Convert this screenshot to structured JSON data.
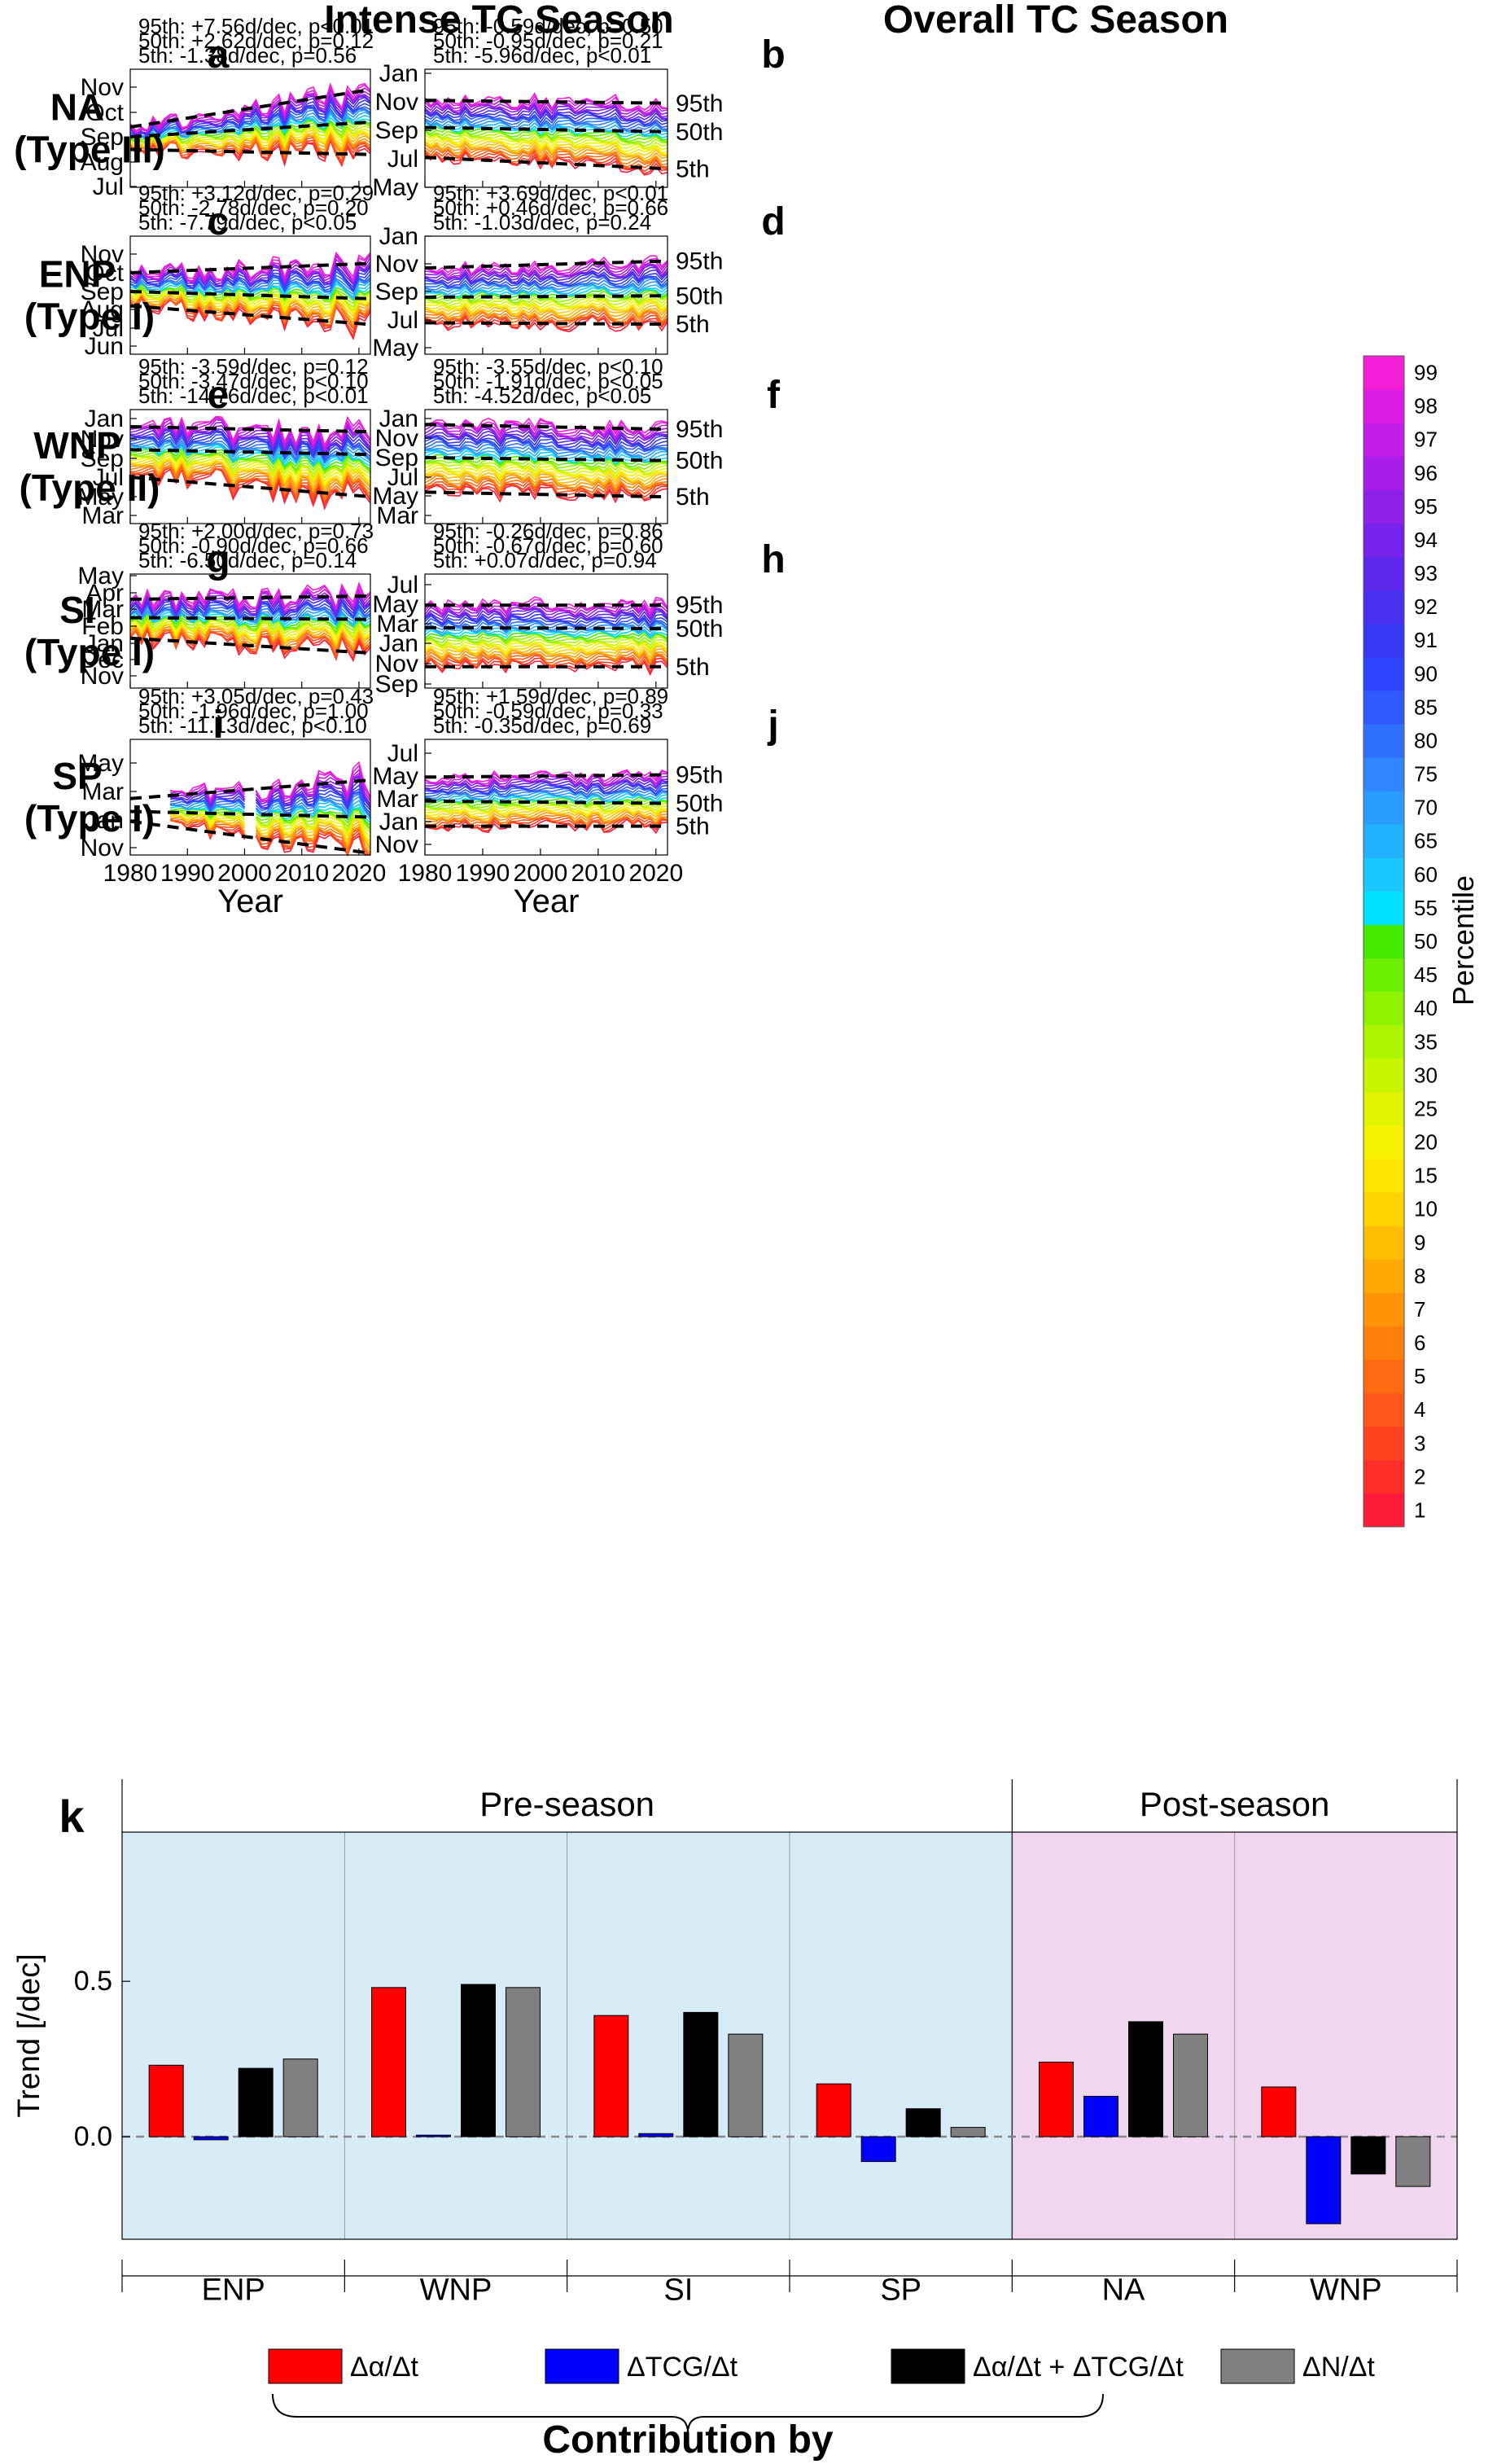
{
  "top_headers": [
    "Intense TC Season",
    "Overall TC Season"
  ],
  "colorbar": {
    "label": "Percentile",
    "ticks": [
      "1",
      "2",
      "3",
      "4",
      "5",
      "6",
      "7",
      "8",
      "9",
      "10",
      "15",
      "20",
      "25",
      "30",
      "35",
      "40",
      "45",
      "50",
      "55",
      "60",
      "65",
      "70",
      "75",
      "80",
      "85",
      "90",
      "91",
      "92",
      "93",
      "94",
      "95",
      "96",
      "97",
      "98",
      "99"
    ],
    "colors": [
      "#ff1b3a",
      "#ff2f28",
      "#ff4220",
      "#ff561a",
      "#ff6a12",
      "#ff7f0c",
      "#ff9408",
      "#ffa806",
      "#ffbd04",
      "#ffd202",
      "#ffe600",
      "#f6f200",
      "#e2f500",
      "#c9f500",
      "#aef400",
      "#8ef200",
      "#6cef00",
      "#45ea00",
      "#00e0ff",
      "#18c8ff",
      "#22b2ff",
      "#2a9cff",
      "#2f86ff",
      "#3070ff",
      "#305aff",
      "#2f44ff",
      "#3838f6",
      "#4a30f0",
      "#5e28ec",
      "#7722ea",
      "#8f20e8",
      "#a81ee8",
      "#c21de8",
      "#dd1de4",
      "#f41ed8"
    ]
  },
  "panels_meta": [
    {
      "label": "a",
      "region": "NA",
      "type": "(Type III)",
      "months": [
        "Jul",
        "Aug",
        "Sep",
        "Oct",
        "Nov"
      ],
      "annotation": [
        "95th: +7.56d/dec, p<0.01",
        "50th: +2.62d/dec, p=0.12",
        "5th:   -1.38d/dec, p=0.56"
      ]
    },
    {
      "label": "b",
      "months": [
        "May",
        "Jul",
        "Sep",
        "Nov",
        "Jan"
      ],
      "pct_labels": [
        "95th",
        "50th",
        "5th"
      ],
      "annotation": [
        "95th: -0.59d/dec, p=0.50",
        "50th: -0.95d/dec, p=0.21",
        "5th:   -5.96d/dec, p<0.01"
      ]
    },
    {
      "label": "c",
      "region": "ENP",
      "type": "(Type I)",
      "months": [
        "Jun",
        "Jul",
        "Aug",
        "Sep",
        "Oct",
        "Nov"
      ],
      "annotation": [
        "95th: +3.12d/dec, p=0.29",
        "50th: -2.78d/dec, p=0.20",
        "5th:   -7.79d/dec, p<0.05"
      ]
    },
    {
      "label": "d",
      "months": [
        "May",
        "Jul",
        "Sep",
        "Nov",
        "Jan"
      ],
      "pct_labels": [
        "95th",
        "50th",
        "5th"
      ],
      "annotation": [
        "95th: +3.69d/dec, p<0.01",
        "50th: +0.46d/dec, p=0.66",
        "5th:   -1.03d/dec, p=0.24"
      ]
    },
    {
      "label": "e",
      "region": "WNP",
      "type": "(Type II)",
      "months": [
        "Mar",
        "May",
        "Jul",
        "Sep",
        "Nov",
        "Jan"
      ],
      "annotation": [
        "95th: -3.59d/dec, p=0.12",
        "50th: -3.47d/dec, p<0.10",
        "5th:   -14.76d/dec, p<0.01"
      ]
    },
    {
      "label": "f",
      "months": [
        "Mar",
        "May",
        "Jul",
        "Sep",
        "Nov",
        "Jan"
      ],
      "pct_labels": [
        "95th",
        "50th",
        "5th"
      ],
      "annotation": [
        "95th: -3.55d/dec, p<0.10",
        "50th: -1.91d/dec, p<0.05",
        "5th:   -4.52d/dec, p<0.05"
      ]
    },
    {
      "label": "g",
      "region": "SI",
      "type": "(Type I)",
      "months": [
        "Nov",
        "Dec",
        "Jan",
        "Feb",
        "Mar",
        "Apr",
        "May"
      ],
      "annotation": [
        "95th: +2.00d/dec, p=0.73",
        "50th: -0.90d/dec, p=0.66",
        "5th:   -6.50d/dec, p=0.14"
      ]
    },
    {
      "label": "h",
      "months": [
        "Sep",
        "Nov",
        "Jan",
        "Mar",
        "May",
        "Jul"
      ],
      "pct_labels": [
        "95th",
        "50th",
        "5th"
      ],
      "annotation": [
        "95th: -0.26d/dec, p=0.86",
        "50th: -0.67d/dec, p=0.60",
        "5th:   +0.07d/dec, p=0.94"
      ]
    },
    {
      "label": "i",
      "region": "SP",
      "type": "(Type I)",
      "months": [
        "Nov",
        "Jan",
        "Mar",
        "May"
      ],
      "annotation": [
        "95th: +3.05d/dec, p=0.43",
        "50th: -1.96d/dec, p=1.00",
        "5th:   -11.13d/dec, p<0.10"
      ]
    },
    {
      "label": "j",
      "months": [
        "Nov",
        "Jan",
        "Mar",
        "May",
        "Jul"
      ],
      "pct_labels": [
        "95th",
        "50th",
        "5th"
      ],
      "annotation": [
        "95th: +1.59d/dec, p=0.89",
        "50th: -0.59d/dec, p=0.33",
        "5th:   -0.35d/dec, p=0.69"
      ]
    }
  ],
  "year_axis": {
    "label": "Year",
    "ticks": [
      "1980",
      "1990",
      "2000",
      "2010",
      "2020"
    ]
  },
  "chart_data": [
    {
      "panel": "a",
      "type": "line",
      "x_range": [
        1980,
        2022
      ],
      "trend_d_per_dec": {
        "95th": 7.56,
        "50th": 2.62,
        "5th": -1.38
      },
      "p_values": {
        "95th": "p<0.01",
        "50th": "p=0.12",
        "5th": "p=0.56"
      },
      "trend_endpoints_month": {
        "95th": [
          9.4,
          10.9
        ],
        "50th": [
          9.0,
          9.6
        ],
        "5th": [
          8.5,
          8.3
        ]
      }
    },
    {
      "panel": "b",
      "type": "line",
      "x_range": [
        1980,
        2022
      ],
      "trend_d_per_dec": {
        "95th": -0.59,
        "50th": -0.95,
        "5th": -5.96
      },
      "p_values": {
        "95th": "p=0.50",
        "50th": "p=0.21",
        "5th": "p<0.01"
      },
      "trend_endpoints_month": {
        "95th": [
          11.1,
          10.9
        ],
        "50th": [
          9.2,
          8.9
        ],
        "5th": [
          7.1,
          6.3
        ]
      }
    },
    {
      "panel": "c",
      "type": "line",
      "x_range": [
        1980,
        2022
      ],
      "trend_d_per_dec": {
        "95th": 3.12,
        "50th": -2.78,
        "5th": -7.79
      },
      "p_values": {
        "95th": "p=0.29",
        "50th": "p=0.20",
        "5th": "p<0.05"
      },
      "trend_endpoints_month": {
        "95th": [
          10.0,
          10.5
        ],
        "50th": [
          9.0,
          8.6
        ],
        "5th": [
          8.2,
          7.2
        ]
      }
    },
    {
      "panel": "d",
      "type": "line",
      "x_range": [
        1980,
        2022
      ],
      "trend_d_per_dec": {
        "95th": 3.69,
        "50th": 0.46,
        "5th": -1.03
      },
      "p_values": {
        "95th": "p<0.01",
        "50th": "p=0.66",
        "5th": "p=0.24"
      },
      "trend_endpoints_month": {
        "95th": [
          10.7,
          11.2
        ],
        "50th": [
          8.6,
          8.7
        ],
        "5th": [
          6.8,
          6.7
        ]
      }
    },
    {
      "panel": "e",
      "type": "line",
      "x_range": [
        1980,
        2022
      ],
      "trend_d_per_dec": {
        "95th": -3.59,
        "50th": -3.47,
        "5th": -14.76
      },
      "p_values": {
        "95th": "p=0.12",
        "50th": "p<0.10",
        "5th": "p<0.01"
      },
      "trend_endpoints_month": {
        "95th": [
          12.2,
          11.7
        ],
        "50th": [
          9.9,
          9.4
        ],
        "5th": [
          7.0,
          5.0
        ]
      }
    },
    {
      "panel": "f",
      "type": "line",
      "x_range": [
        1980,
        2022
      ],
      "trend_d_per_dec": {
        "95th": -3.55,
        "50th": -1.91,
        "5th": -4.52
      },
      "p_values": {
        "95th": "p<0.10",
        "50th": "p<0.05",
        "5th": "p<0.05"
      },
      "trend_endpoints_month": {
        "95th": [
          12.4,
          11.9
        ],
        "50th": [
          9.0,
          8.7
        ],
        "5th": [
          5.4,
          4.9
        ]
      }
    },
    {
      "panel": "g",
      "type": "line",
      "x_range": [
        1980,
        2022
      ],
      "trend_d_per_dec": {
        "95th": 2.0,
        "50th": -0.9,
        "5th": -6.5
      },
      "p_values": {
        "95th": "p=0.73",
        "50th": "p=0.66",
        "5th": "p=0.14"
      },
      "trend_endpoints_month": {
        "95th": [
          3.6,
          3.8
        ],
        "50th": [
          2.5,
          2.4
        ],
        "5th": [
          1.3,
          0.4
        ]
      }
    },
    {
      "panel": "h",
      "type": "line",
      "x_range": [
        1980,
        2022
      ],
      "trend_d_per_dec": {
        "95th": -0.26,
        "50th": -0.67,
        "5th": 0.07
      },
      "p_values": {
        "95th": "p=0.86",
        "50th": "p=0.60",
        "5th": "p=0.94"
      },
      "trend_endpoints_month": {
        "95th": [
          4.9,
          4.9
        ],
        "50th": [
          2.6,
          2.5
        ],
        "5th": [
          -1.3,
          -1.3
        ]
      }
    },
    {
      "panel": "i",
      "type": "line",
      "x_range": [
        1980,
        2022
      ],
      "trend_d_per_dec": {
        "95th": 3.05,
        "50th": -1.96,
        "5th": -11.13
      },
      "p_values": {
        "95th": "p=0.43",
        "50th": "p=1.00",
        "5th": "p<0.10"
      },
      "trend_endpoints_month": {
        "95th": [
          2.5,
          3.8
        ],
        "50th": [
          1.6,
          1.2
        ],
        "5th": [
          0.9,
          -1.4
        ]
      }
    },
    {
      "panel": "j",
      "type": "line",
      "x_range": [
        1980,
        2022
      ],
      "trend_d_per_dec": {
        "95th": 1.59,
        "50th": -0.59,
        "5th": -0.35
      },
      "p_values": {
        "95th": "p=0.89",
        "50th": "p=0.33",
        "5th": "p=0.69"
      },
      "trend_endpoints_month": {
        "95th": [
          4.9,
          5.1
        ],
        "50th": [
          2.8,
          2.6
        ],
        "5th": [
          0.6,
          0.6
        ]
      }
    },
    {
      "panel": "k",
      "type": "bar",
      "ylabel": "Trend [/dec]",
      "ylim": [
        -0.33,
        0.98
      ],
      "yticks": [
        "0.0",
        "0.5"
      ],
      "sections": [
        {
          "name": "Pre-season",
          "color": "#d8ecf8"
        },
        {
          "name": "Post-season",
          "color": "#f0d6ee"
        }
      ],
      "categories": [
        "ENP",
        "WNP",
        "SI",
        "SP",
        "NA",
        "WNP"
      ],
      "series": [
        {
          "name": "Δα/Δt",
          "color": "#ff0000",
          "values": [
            0.23,
            0.48,
            0.39,
            0.17,
            0.24,
            0.16
          ]
        },
        {
          "name": "ΔTCG/Δt",
          "color": "#0000ff",
          "values": [
            -0.01,
            0.005,
            0.01,
            -0.08,
            0.13,
            -0.28
          ]
        },
        {
          "name": "Δα/Δt + ΔTCG/Δt",
          "color": "#000000",
          "values": [
            0.22,
            0.49,
            0.4,
            0.09,
            0.37,
            -0.12
          ]
        },
        {
          "name": "ΔN/Δt",
          "color": "#808080",
          "values": [
            0.25,
            0.48,
            0.33,
            0.03,
            0.33,
            -0.16
          ]
        }
      ],
      "bracket_label": "Contribution by"
    }
  ]
}
